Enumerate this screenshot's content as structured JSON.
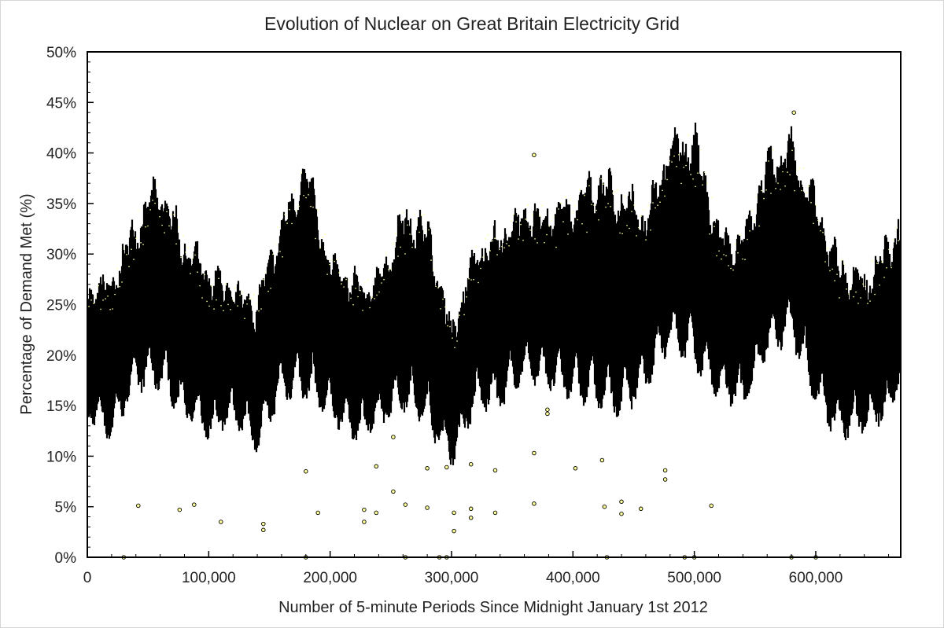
{
  "chart_data": {
    "type": "scatter",
    "title": "Evolution of Nuclear on Great Britain Electricity Grid",
    "xlabel": "Number of 5-minute Periods Since Midnight January 1st 2012",
    "ylabel": "Percentage of Demand Met (%)",
    "xlim": [
      0,
      670000
    ],
    "ylim": [
      0,
      50
    ],
    "x_ticks": [
      0,
      100000,
      200000,
      300000,
      400000,
      500000,
      600000
    ],
    "x_tick_labels": [
      "0",
      "100,000",
      "200,000",
      "300,000",
      "400,000",
      "500,000",
      "600,000"
    ],
    "y_ticks": [
      0,
      5,
      10,
      15,
      20,
      25,
      30,
      35,
      40,
      45,
      50
    ],
    "y_tick_labels": [
      "0%",
      "5%",
      "10%",
      "15%",
      "20%",
      "25%",
      "30%",
      "35%",
      "40%",
      "45%",
      "50%"
    ],
    "grid": false,
    "legend": "none",
    "marker_fill": "#ffff9a",
    "marker_edge": "#000000",
    "envelope_note_x": [
      0,
      20000,
      40000,
      60000,
      80000,
      100000,
      120000,
      140000,
      160000,
      180000,
      200000,
      220000,
      240000,
      260000,
      280000,
      300000,
      320000,
      340000,
      360000,
      380000,
      400000,
      420000,
      440000,
      460000,
      480000,
      500000,
      520000,
      540000,
      560000,
      580000,
      600000,
      620000,
      640000,
      660000,
      670000
    ],
    "envelope_upper": [
      27,
      28,
      34,
      38,
      32,
      29,
      27,
      26,
      34,
      40,
      30,
      28,
      28,
      35,
      34,
      23,
      31,
      33,
      35,
      35,
      36,
      39,
      37,
      35,
      42,
      43,
      33,
      32,
      40,
      42,
      36,
      30,
      28,
      32,
      34
    ],
    "envelope_lower": [
      14,
      12,
      17,
      17,
      14,
      12,
      14,
      11,
      16,
      16,
      14,
      12,
      13,
      15,
      13,
      9.5,
      15,
      15,
      18,
      17,
      16,
      15,
      14,
      17,
      21,
      19,
      16,
      15,
      20,
      22,
      15,
      12,
      13,
      14,
      18
    ],
    "outliers": [
      {
        "x": 42000,
        "y": 5.1
      },
      {
        "x": 76000,
        "y": 4.7
      },
      {
        "x": 88000,
        "y": 5.2
      },
      {
        "x": 110000,
        "y": 3.5
      },
      {
        "x": 145000,
        "y": 3.3
      },
      {
        "x": 145000,
        "y": 2.7
      },
      {
        "x": 180000,
        "y": 8.5
      },
      {
        "x": 190000,
        "y": 4.4
      },
      {
        "x": 228000,
        "y": 4.7
      },
      {
        "x": 228000,
        "y": 3.5
      },
      {
        "x": 238000,
        "y": 4.4
      },
      {
        "x": 238000,
        "y": 9.0
      },
      {
        "x": 252000,
        "y": 6.5
      },
      {
        "x": 252000,
        "y": 11.9
      },
      {
        "x": 262000,
        "y": 5.2
      },
      {
        "x": 280000,
        "y": 8.8
      },
      {
        "x": 280000,
        "y": 4.9
      },
      {
        "x": 296000,
        "y": 8.9
      },
      {
        "x": 302000,
        "y": 4.4
      },
      {
        "x": 302000,
        "y": 2.6
      },
      {
        "x": 316000,
        "y": 9.2
      },
      {
        "x": 316000,
        "y": 4.8
      },
      {
        "x": 316000,
        "y": 3.9
      },
      {
        "x": 336000,
        "y": 8.6
      },
      {
        "x": 336000,
        "y": 4.4
      },
      {
        "x": 368000,
        "y": 10.3
      },
      {
        "x": 368000,
        "y": 5.3
      },
      {
        "x": 379000,
        "y": 14.2
      },
      {
        "x": 379000,
        "y": 14.6
      },
      {
        "x": 402000,
        "y": 8.8
      },
      {
        "x": 424000,
        "y": 9.6
      },
      {
        "x": 426000,
        "y": 5.0
      },
      {
        "x": 440000,
        "y": 5.5
      },
      {
        "x": 440000,
        "y": 4.3
      },
      {
        "x": 456000,
        "y": 4.8
      },
      {
        "x": 476000,
        "y": 8.6
      },
      {
        "x": 476000,
        "y": 7.7
      },
      {
        "x": 514000,
        "y": 5.1
      },
      {
        "x": 368000,
        "y": 39.8
      },
      {
        "x": 582000,
        "y": 44.0
      },
      {
        "x": 30000,
        "y": 0
      },
      {
        "x": 180000,
        "y": 0
      },
      {
        "x": 262000,
        "y": 0
      },
      {
        "x": 290000,
        "y": 0
      },
      {
        "x": 296000,
        "y": 0
      },
      {
        "x": 428000,
        "y": 0
      },
      {
        "x": 492000,
        "y": 0
      },
      {
        "x": 500000,
        "y": 0
      },
      {
        "x": 580000,
        "y": 0
      },
      {
        "x": 600000,
        "y": 0
      }
    ]
  }
}
